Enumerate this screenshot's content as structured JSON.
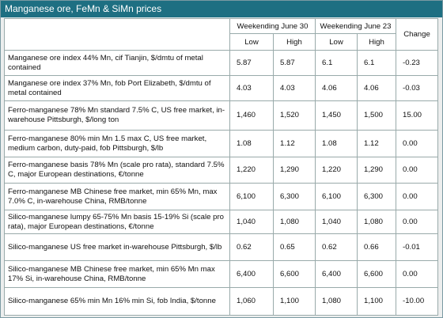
{
  "header": {
    "title": "Manganese ore, FeMn & SiMn prices"
  },
  "table": {
    "periods": [
      "Weekending June 30",
      "Weekending June 23"
    ],
    "change": "Change",
    "subheaders": [
      "Low",
      "High",
      "Low",
      "High"
    ],
    "rows": [
      [
        "Manganese ore index 44% Mn, cif Tianjin, $/dmtu of metal contained",
        "5.87",
        "5.87",
        "6.1",
        "6.1",
        "-0.23"
      ],
      [
        "Manganese ore index 37% Mn, fob Port Elizabeth, $/dmtu of metal contained",
        "4.03",
        "4.03",
        "4.06",
        "4.06",
        "-0.03"
      ],
      [
        "Ferro-manganese 78% Mn standard 7.5% C, US free market, in-warehouse Pittsburgh, $/long ton",
        "1,460",
        "1,520",
        "1,450",
        "1,500",
        "15.00"
      ],
      [
        "Ferro-manganese 80% min Mn 1.5 max C, US free market, medium carbon, duty-paid, fob Pittsburgh, $/lb",
        "1.08",
        "1.12",
        "1.08",
        "1.12",
        "0.00"
      ],
      [
        "Ferro-manganese basis 78% Mn (scale pro rata), standard 7.5% C, major European destinations, €/tonne",
        "1,220",
        "1,290",
        "1,220",
        "1,290",
        "0.00"
      ],
      [
        "Ferro-manganese MB Chinese free market, min 65% Mn, max 7.0% C, in-warehouse China, RMB/tonne",
        "6,100",
        "6,300",
        "6,100",
        "6,300",
        "0.00"
      ],
      [
        "Silico-manganese lumpy 65-75% Mn basis 15-19% Si (scale pro rata), major European destinations, €/tonne",
        "1,040",
        "1,080",
        "1,040",
        "1,080",
        "0.00"
      ],
      [
        "Silico-manganese US free market in-warehouse Pittsburgh, $/lb",
        "0.62",
        "0.65",
        "0.62",
        "0.66",
        "-0.01"
      ],
      [
        "Silico-manganese MB Chinese free market, min 65% Mn max 17% Si, in-warehouse China, RMB/tonne",
        "6,400",
        "6,600",
        "6,400",
        "6,600",
        "0.00"
      ],
      [
        "Silico-manganese 65% min Mn 16% min Si, fob India, $/tonne",
        "1,060",
        "1,100",
        "1,080",
        "1,100",
        "-10.00"
      ]
    ]
  }
}
